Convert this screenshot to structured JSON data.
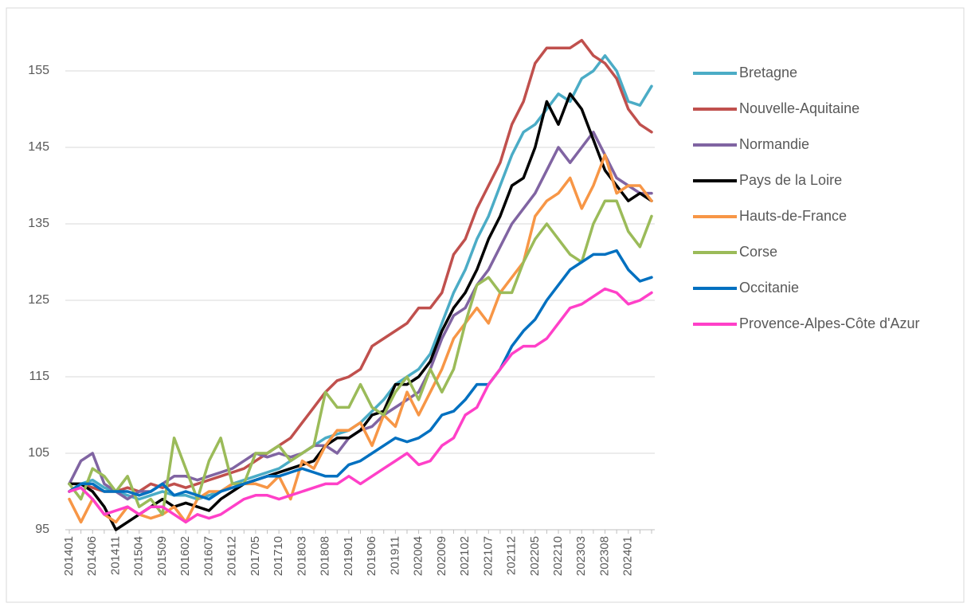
{
  "chart_data": {
    "type": "line",
    "categories": [
      "201401",
      null,
      "201406",
      null,
      "201411",
      null,
      "201504",
      null,
      "201509",
      null,
      "201602",
      null,
      "201607",
      null,
      "201612",
      null,
      "201705",
      null,
      "201710",
      null,
      "201803",
      null,
      "201808",
      null,
      "201901",
      null,
      "201906",
      null,
      "201911",
      null,
      "202004",
      null,
      "202009",
      null,
      "202102",
      null,
      "202107",
      null,
      "202112",
      null,
      "202205",
      null,
      "202210",
      null,
      "202303",
      null,
      "202308",
      null,
      "202401",
      null,
      null
    ],
    "ylim": [
      95,
      160
    ],
    "yticks": [
      95,
      105,
      115,
      125,
      135,
      145,
      155
    ],
    "grid": true,
    "series": [
      {
        "name": "Bretagne",
        "color": "#4bacc6",
        "values": [
          100,
          101,
          101.5,
          100.5,
          100,
          99.5,
          99,
          99.5,
          100,
          99.5,
          99.5,
          99,
          99.5,
          100,
          101,
          101.5,
          102,
          102.5,
          103,
          104,
          105,
          106,
          107,
          107.5,
          108,
          109,
          110.5,
          112,
          114,
          115,
          116,
          118,
          122,
          126,
          129,
          133,
          136,
          140,
          144,
          147,
          148,
          150,
          152,
          151,
          154,
          155,
          157,
          155,
          151,
          150.5,
          153
        ]
      },
      {
        "name": "Nouvelle-Aquitaine",
        "color": "#c0504d",
        "values": [
          100,
          101,
          100.5,
          100,
          100,
          100.5,
          100,
          101,
          100.5,
          101,
          100.5,
          101,
          101.5,
          102,
          102.5,
          103,
          104,
          105,
          106,
          107,
          109,
          111,
          113,
          114.5,
          115,
          116,
          119,
          120,
          121,
          122,
          124,
          124,
          126,
          131,
          133,
          137,
          140,
          143,
          148,
          151,
          156,
          158,
          158,
          158,
          159,
          157,
          156,
          154,
          150,
          148,
          147
        ]
      },
      {
        "name": "Normandie",
        "color": "#8064a2",
        "values": [
          101,
          104,
          105,
          101,
          100,
          99,
          100,
          100,
          101,
          102,
          102,
          101.5,
          102,
          102.5,
          103,
          104,
          105,
          104.5,
          105,
          104.5,
          105,
          106,
          106,
          105,
          107,
          108,
          108.5,
          110,
          111,
          112,
          113,
          116,
          120,
          123,
          124,
          127,
          129,
          132,
          135,
          137,
          139,
          142,
          145,
          143,
          145,
          147,
          144,
          141,
          140,
          139,
          139
        ]
      },
      {
        "name": "Pays de la Loire",
        "color": "#000000",
        "values": [
          101,
          101,
          100,
          98,
          95,
          96,
          97,
          98,
          99,
          98,
          98.5,
          98,
          97.5,
          99,
          100,
          101,
          101.5,
          102,
          102.5,
          103,
          103.5,
          104,
          106,
          107,
          107,
          108,
          110,
          110.5,
          114,
          114,
          115,
          117,
          121,
          124,
          126,
          129,
          133,
          136,
          140,
          141,
          145,
          151,
          148,
          152,
          150,
          146,
          142,
          140,
          138,
          139,
          138
        ]
      },
      {
        "name": "Hauts-de-France",
        "color": "#f79646",
        "values": [
          99,
          96,
          99,
          97,
          96,
          98,
          97,
          96.5,
          97,
          98,
          96,
          99,
          100,
          100,
          101,
          101,
          101,
          100.5,
          102,
          99,
          104,
          103,
          106,
          108,
          108,
          109,
          106,
          110,
          108.5,
          113,
          110,
          113,
          116,
          120,
          122,
          124,
          122,
          126,
          128,
          130,
          136,
          138,
          139,
          141,
          137,
          140,
          144,
          139,
          140,
          140,
          138
        ]
      },
      {
        "name": "Corse",
        "color": "#9bbb59",
        "values": [
          101,
          99,
          103,
          102,
          100,
          102,
          98,
          99,
          97,
          107,
          103,
          99,
          104,
          107,
          101,
          101,
          105,
          105,
          106,
          104,
          105,
          106,
          113,
          111,
          111,
          114,
          111,
          110,
          113,
          115,
          112,
          116,
          113,
          116,
          122,
          127,
          128,
          126,
          126,
          130,
          133,
          135,
          133,
          131,
          130,
          135,
          138,
          138,
          134,
          132,
          136
        ]
      },
      {
        "name": "Occitanie",
        "color": "#0070c0",
        "values": [
          100,
          101,
          101,
          100,
          100,
          100,
          99.5,
          100,
          101,
          99.5,
          100,
          99.5,
          99,
          100,
          100.5,
          101,
          101.5,
          102,
          102,
          102.5,
          103,
          102.5,
          102,
          102,
          103.5,
          104,
          105,
          106,
          107,
          106.5,
          107,
          108,
          110,
          110.5,
          112,
          114,
          114,
          116,
          119,
          121,
          122.5,
          125,
          127,
          129,
          130,
          131,
          131,
          131.5,
          129,
          127.5,
          128
        ]
      },
      {
        "name": "Provence-Alpes-Côte d'Azur",
        "color": "#ff40c8",
        "values": [
          100,
          100.5,
          99,
          97,
          97.5,
          98,
          97,
          98,
          98,
          97,
          96,
          97,
          96.5,
          97,
          98,
          99,
          99.5,
          99.5,
          99,
          99.5,
          100,
          100.5,
          101,
          101,
          102,
          101,
          102,
          103,
          104,
          105,
          103.5,
          104,
          106,
          107,
          110,
          111,
          114,
          116,
          118,
          119,
          119,
          120,
          122,
          124,
          124.5,
          125.5,
          126.5,
          126,
          124.5,
          125,
          126
        ]
      }
    ]
  }
}
